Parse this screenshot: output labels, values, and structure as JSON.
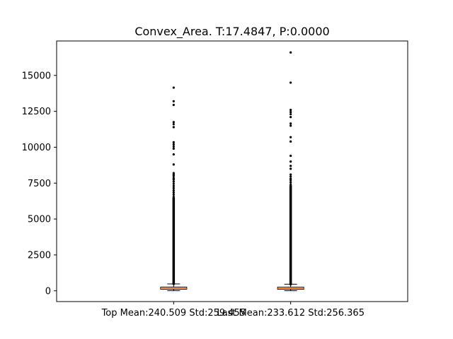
{
  "chart_data": {
    "type": "box",
    "title": "Convex_Area. T:17.4847, P:0.0000",
    "xlabel": "",
    "ylabel": "",
    "ylim": [
      -750,
      17400
    ],
    "yticks": [
      0,
      2500,
      5000,
      7500,
      10000,
      12500,
      15000
    ],
    "grid": false,
    "colors": {
      "box": "#000000",
      "median": "#ff7f0e",
      "outlier": "#000000",
      "frame": "#000000"
    },
    "series": [
      {
        "name": "Top Mean:240.509 Std:259.455",
        "q1": 110,
        "median": 175,
        "q3": 255,
        "whisker_low": 5,
        "whisker_high": 480,
        "outlier_dense_min": 480,
        "outlier_dense_max": 6450,
        "outliers": [
          6550,
          6700,
          6850,
          7000,
          7150,
          7300,
          7450,
          7600,
          7750,
          7850,
          8000,
          8100,
          8200,
          8800,
          9500,
          9900,
          10050,
          10200,
          10350,
          11400,
          11600,
          11750,
          12950,
          13200,
          14150
        ]
      },
      {
        "name": "Last Mean:233.612 Std:256.365",
        "q1": 105,
        "median": 170,
        "q3": 250,
        "whisker_low": 5,
        "whisker_high": 460,
        "outlier_dense_min": 460,
        "outlier_dense_max": 7300,
        "outliers": [
          7400,
          7550,
          7700,
          7800,
          7950,
          8100,
          8500,
          8700,
          9000,
          9400,
          10400,
          10700,
          11500,
          11650,
          12100,
          12300,
          12450,
          12600,
          14500,
          16600
        ]
      }
    ]
  }
}
